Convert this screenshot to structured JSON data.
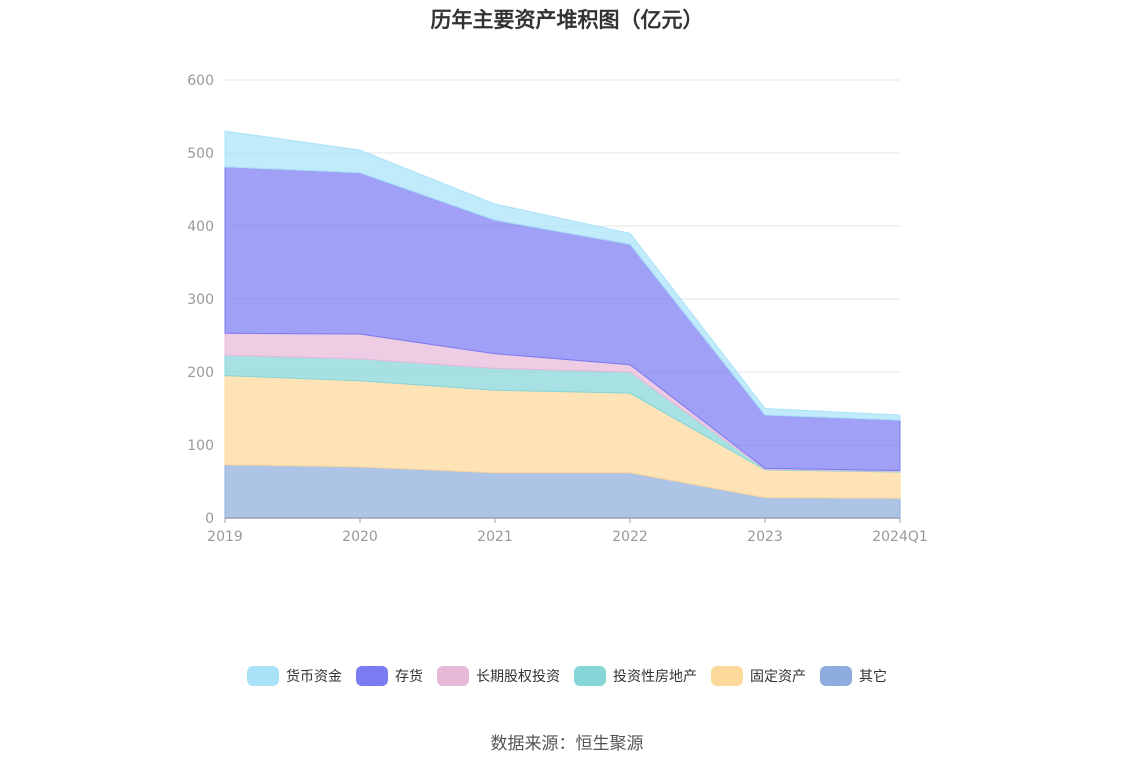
{
  "chart_data": {
    "type": "area",
    "stacked": true,
    "title": "历年主要资产堆积图（亿元）",
    "x": [
      "2019",
      "2020",
      "2021",
      "2022",
      "2023",
      "2024Q1"
    ],
    "ylim": [
      0,
      600
    ],
    "yticks": [
      0,
      100,
      200,
      300,
      400,
      500,
      600
    ],
    "grid": true,
    "legend_position": "bottom",
    "series": [
      {
        "name": "货币资金",
        "color": "#a9e2f8",
        "values": [
          49,
          31,
          22,
          15,
          9,
          7
        ]
      },
      {
        "name": "存货",
        "color": "#7a7cf2",
        "values": [
          228,
          221,
          183,
          165,
          73,
          69
        ]
      },
      {
        "name": "长期股权投资",
        "color": "#e8b8d9",
        "values": [
          30,
          34,
          20,
          10,
          1,
          1
        ]
      },
      {
        "name": "投资性房地产",
        "color": "#86d6d8",
        "values": [
          28,
          30,
          30,
          29,
          1,
          1
        ]
      },
      {
        "name": "固定资产",
        "color": "#fdd89b",
        "values": [
          122,
          118,
          113,
          109,
          38,
          36
        ]
      },
      {
        "name": "其它",
        "color": "#8eaddd",
        "values": [
          73,
          70,
          62,
          62,
          28,
          27
        ]
      }
    ]
  },
  "source": "数据来源：恒生聚源"
}
